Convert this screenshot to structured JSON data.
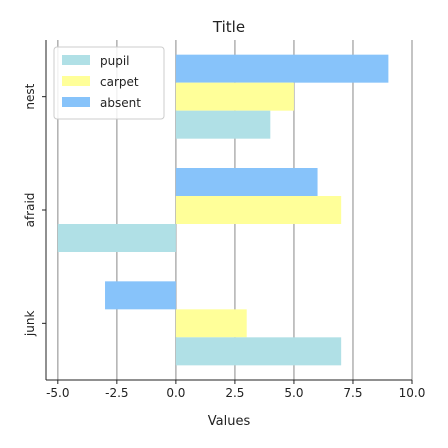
{
  "chart_data": {
    "type": "bar",
    "orientation": "horizontal",
    "title": "Title",
    "xlabel": "Values",
    "ylabel": "",
    "categories": [
      "nest",
      "afraid",
      "junk"
    ],
    "series": [
      {
        "name": "pupil",
        "color": "#b0e0e6",
        "values": [
          4,
          -5,
          7
        ]
      },
      {
        "name": "carpet",
        "color": "#ffff99",
        "values": [
          5,
          7,
          3
        ]
      },
      {
        "name": "absent",
        "color": "#87c3fa",
        "values": [
          9,
          6,
          -3
        ]
      }
    ],
    "xlim": [
      -5.5,
      10
    ],
    "xticks": [
      -5.0,
      -2.5,
      0.0,
      2.5,
      5.0,
      7.5,
      10.0
    ],
    "xtick_labels": [
      "-5.0",
      "-2.5",
      "0.0",
      "2.5",
      "5.0",
      "7.5",
      "10.0"
    ],
    "grid": true,
    "legend_position": "top-left"
  }
}
